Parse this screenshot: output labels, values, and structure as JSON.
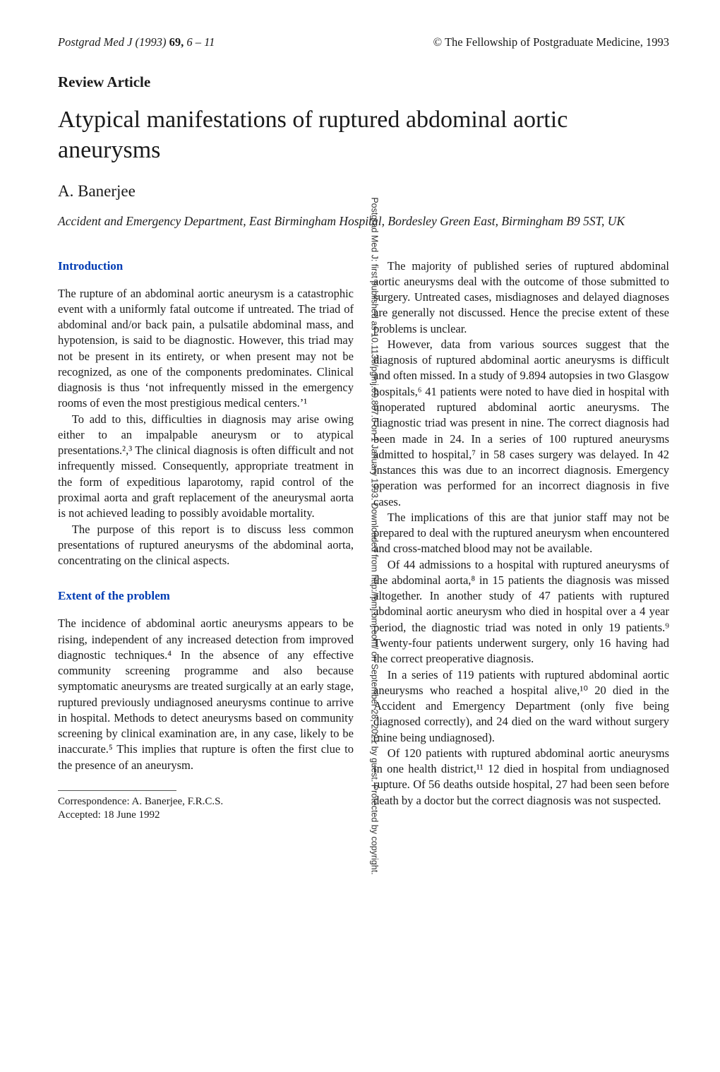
{
  "header": {
    "journal_ref_left": "Postgrad Med J (1993) ",
    "journal_vol": "69,",
    "journal_pages": " 6 – 11",
    "copyright": "© The Fellowship of Postgraduate Medicine, 1993"
  },
  "labels": {
    "review": "Review Article"
  },
  "title": "Atypical manifestations of ruptured abdominal aortic aneurysms",
  "author": "A. Banerjee",
  "affiliation": "Accident and Emergency Department, East Birmingham Hospital, Bordesley Green East, Birmingham B9 5ST, UK",
  "sections": {
    "intro_head": "Introduction",
    "intro_p1": "The rupture of an abdominal aortic aneurysm is a catastrophic event with a uniformly fatal outcome if untreated. The triad of abdominal and/or back pain, a pulsatile abdominal mass, and hypotension, is said to be diagnostic. However, this triad may not be present in its entirety, or when present may not be recognized, as one of the components predominates. Clinical diagnosis is thus ‘not infrequently missed in the emergency rooms of even the most prestigious medical centers.’¹",
    "intro_p2": "To add to this, difficulties in diagnosis may arise owing either to an impalpable aneurysm or to atypical presentations.²,³ The clinical diagnosis is often difficult and not infrequently missed. Consequently, appropriate treatment in the form of expeditious laparotomy, rapid control of the proximal aorta and graft replacement of the aneurysmal aorta is not achieved leading to possibly avoidable mortality.",
    "intro_p3": "The purpose of this report is to discuss less common presentations of ruptured aneurysms of the abdominal aorta, concentrating on the clinical aspects.",
    "extent_head": "Extent of the problem",
    "extent_p1": "The incidence of abdominal aortic aneurysms appears to be rising, independent of any increased detection from improved diagnostic techniques.⁴ In the absence of any effective community screening programme and also because symptomatic aneurysms are treated surgically at an early stage, ruptured previously undiagnosed aneurysms continue to arrive in hospital. Methods to detect aneurysms based on community screening by clinical examination are, in any case, likely to be inaccurate.⁵ This implies that rupture is often the first clue to the presence of an aneurysm.",
    "col2_p1": "The majority of published series of ruptured abdominal aortic aneurysms deal with the outcome of those submitted to surgery. Untreated cases, misdiagnoses and delayed diagnoses are generally not discussed. Hence the precise extent of these problems is unclear.",
    "col2_p2": "However, data from various sources suggest that the diagnosis of ruptured abdominal aortic aneurysms is difficult and often missed. In a study of 9.894 autopsies in two Glasgow hospitals,⁶ 41 patients were noted to have died in hospital with unoperated ruptured abdominal aortic aneurysms. The diagnostic triad was present in nine. The correct diagnosis had been made in 24. In a series of 100 ruptured aneurysms admitted to hospital,⁷ in 58 cases surgery was delayed. In 42 instances this was due to an incorrect diagnosis. Emergency operation was performed for an incorrect diagnosis in five cases.",
    "col2_p3": "The implications of this are that junior staff may not be prepared to deal with the ruptured aneurysm when encountered and cross-matched blood may not be available.",
    "col2_p4": "Of 44 admissions to a hospital with ruptured aneurysms of the abdominal aorta,⁸ in 15 patients the diagnosis was missed altogether. In another study of 47 patients with ruptured abdominal aortic aneurysm who died in hospital over a 4 year period, the diagnostic triad was noted in only 19 patients.⁹ Twenty-four patients underwent surgery, only 16 having had the correct preoperative diagnosis.",
    "col2_p5": "In a series of 119 patients with ruptured abdominal aortic aneurysms who reached a hospital alive,¹⁰ 20 died in the Accident and Emergency Department (only five being diagnosed correctly), and 24 died on the ward without surgery (nine being undiagnosed).",
    "col2_p6": "Of 120 patients with ruptured abdominal aortic aneurysms in one health district,¹¹ 12 died in hospital from undiagnosed rupture. Of 56 deaths outside hospital, 27 had been seen before death by a doctor but the correct diagnosis was not suspected."
  },
  "footnote": {
    "correspondence": "Correspondence: A. Banerjee, F.R.C.S.",
    "accepted": "Accepted: 18 June 1992"
  },
  "sidenote": "Postgrad Med J: first published as 10.1136/pgmj.69.807.6 on 1 January 1993. Downloaded from http://pmj.bmj.com/ on September 28, 2021 by guest. Protected by copyright."
}
